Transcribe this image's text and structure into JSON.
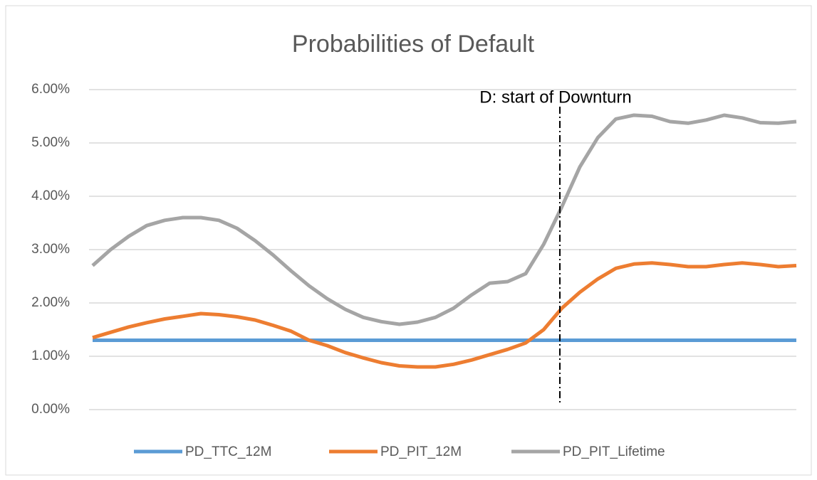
{
  "chart_data": {
    "type": "line",
    "title": "Probabilities of Default",
    "annotation": "D: start of Downturn",
    "categories": [
      null,
      null,
      null,
      null,
      null,
      null,
      null,
      null,
      null,
      null,
      null,
      null,
      null,
      null,
      null,
      null,
      null,
      null,
      null,
      null,
      null,
      null,
      null,
      null,
      null,
      null,
      null,
      null,
      null,
      null,
      null,
      null,
      null,
      null,
      null,
      null,
      null,
      null,
      null,
      null
    ],
    "series": [
      {
        "name": "PD_TTC_12M",
        "color": "#5b9bd5",
        "values": [
          1.3,
          1.3,
          1.3,
          1.3,
          1.3,
          1.3,
          1.3,
          1.3,
          1.3,
          1.3,
          1.3,
          1.3,
          1.3,
          1.3,
          1.3,
          1.3,
          1.3,
          1.3,
          1.3,
          1.3,
          1.3,
          1.3,
          1.3,
          1.3,
          1.3,
          1.3,
          1.3,
          1.3,
          1.3,
          1.3,
          1.3,
          1.3,
          1.3,
          1.3,
          1.3,
          1.3,
          1.3,
          1.3,
          1.3,
          1.3
        ]
      },
      {
        "name": "PD_PIT_12M",
        "color": "#ed7d31",
        "values": [
          1.35,
          1.45,
          1.55,
          1.63,
          1.7,
          1.75,
          1.8,
          1.78,
          1.74,
          1.68,
          1.58,
          1.47,
          1.3,
          1.2,
          1.07,
          0.97,
          0.88,
          0.82,
          0.8,
          0.8,
          0.85,
          0.93,
          1.03,
          1.13,
          1.25,
          1.5,
          1.9,
          2.2,
          2.45,
          2.65,
          2.73,
          2.75,
          2.72,
          2.68,
          2.68,
          2.72,
          2.75,
          2.72,
          2.68,
          2.7
        ]
      },
      {
        "name": "PD_PIT_Lifetime",
        "color": "#a5a5a5",
        "values": [
          2.7,
          3.0,
          3.25,
          3.45,
          3.55,
          3.6,
          3.6,
          3.55,
          3.4,
          3.17,
          2.9,
          2.6,
          2.32,
          2.08,
          1.88,
          1.73,
          1.65,
          1.6,
          1.64,
          1.73,
          1.9,
          2.15,
          2.37,
          2.4,
          2.55,
          3.1,
          3.8,
          4.55,
          5.1,
          5.45,
          5.52,
          5.5,
          5.4,
          5.37,
          5.43,
          5.52,
          5.47,
          5.38,
          5.37,
          5.4
        ]
      }
    ],
    "ylim": [
      0,
      6
    ],
    "yticks": [
      {
        "value": 0,
        "label": "0.00%"
      },
      {
        "value": 1,
        "label": "1.00%"
      },
      {
        "value": 2,
        "label": "2.00%"
      },
      {
        "value": 3,
        "label": "3.00%"
      },
      {
        "value": 4,
        "label": "4.00%"
      },
      {
        "value": 5,
        "label": "5.00%"
      },
      {
        "value": 6,
        "label": "6.00%"
      }
    ],
    "grid": true,
    "legend": "bottom"
  }
}
